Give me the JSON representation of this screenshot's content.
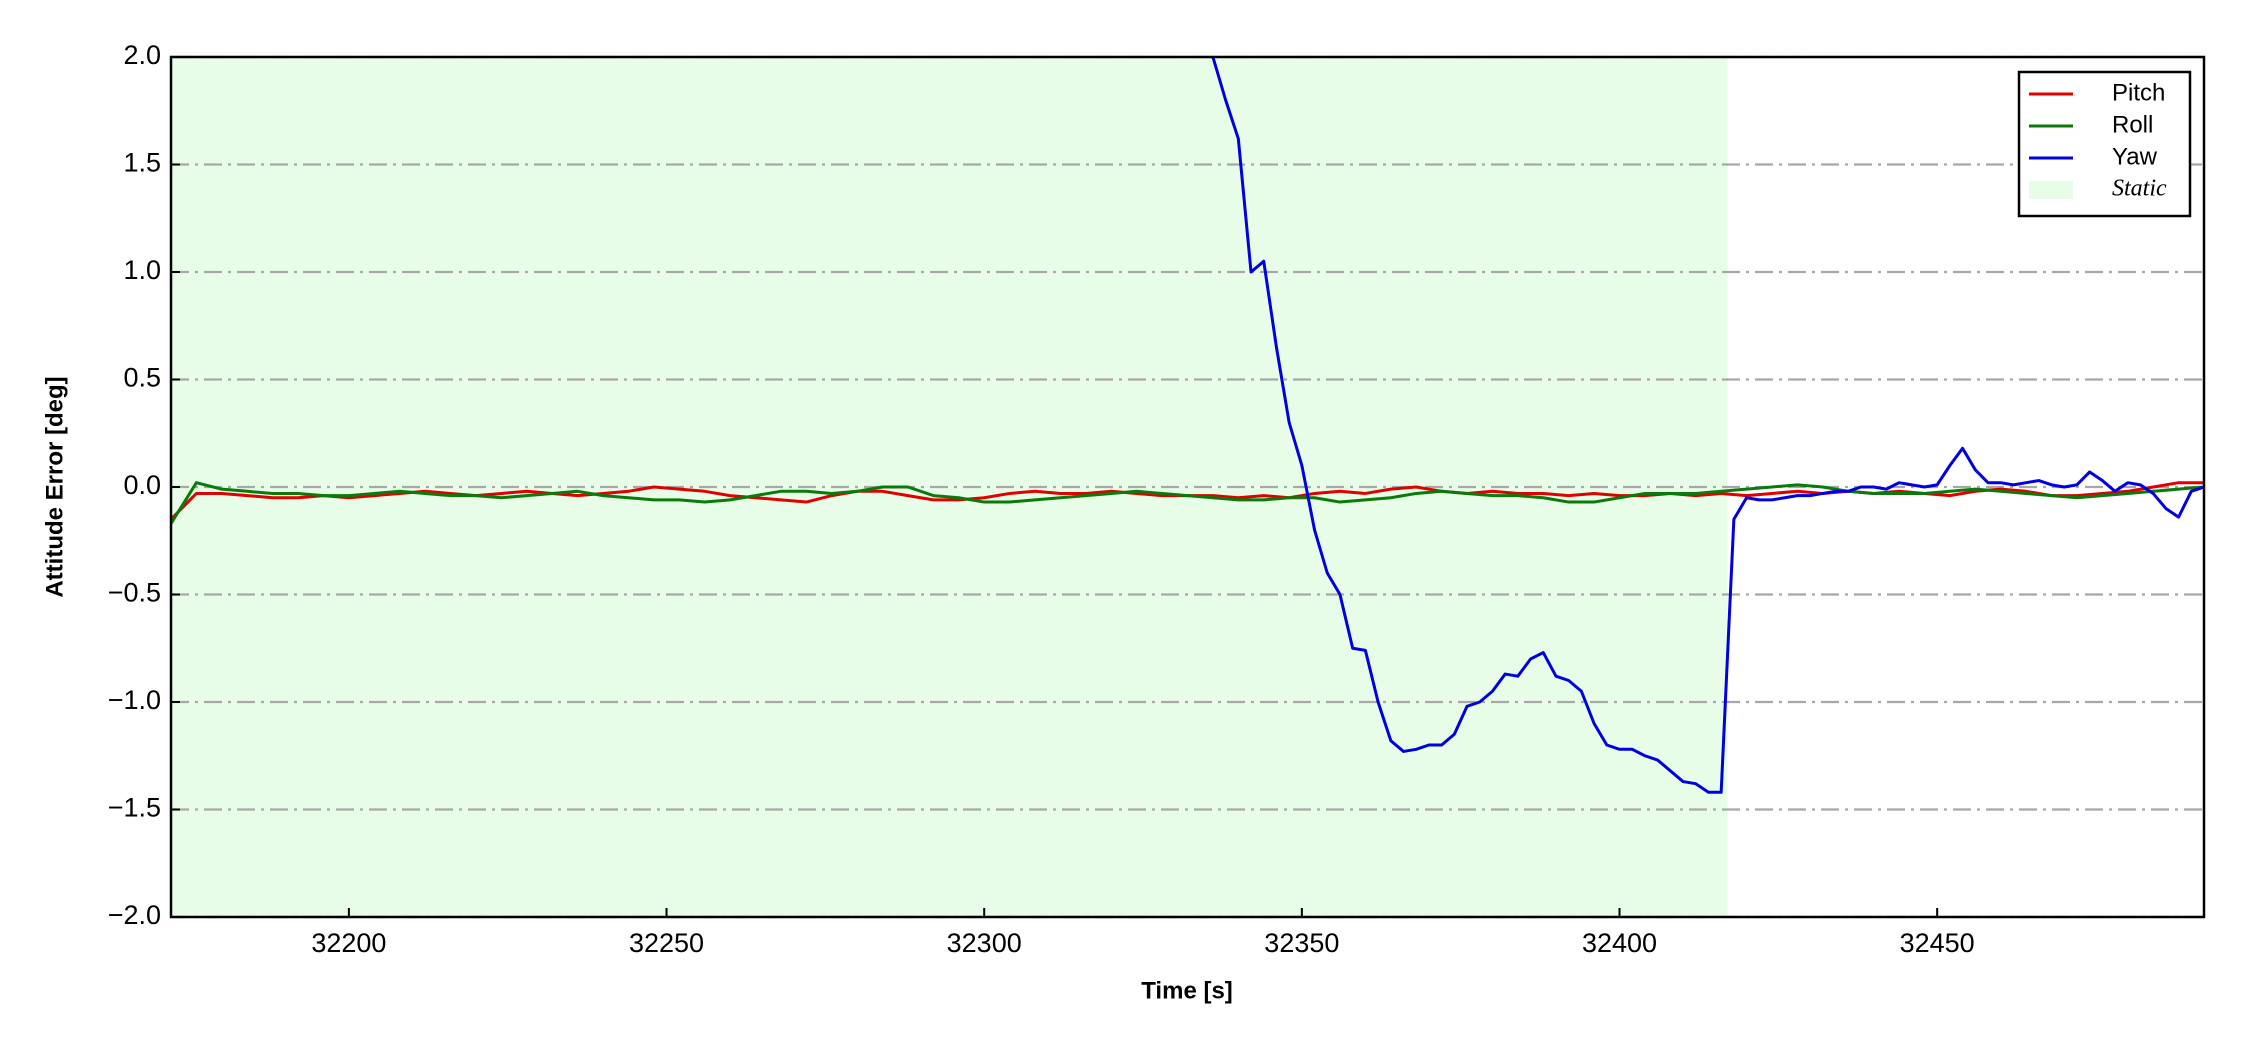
{
  "chart_data": {
    "type": "line",
    "xlabel": "Time [s]",
    "ylabel": "Attitude Error [deg]",
    "xlim": [
      32172,
      32492
    ],
    "ylim": [
      -2,
      2
    ],
    "xticks": [
      32200,
      32250,
      32300,
      32350,
      32400,
      32450
    ],
    "yticks": [
      {
        "value": -2,
        "label": "−2.0"
      },
      {
        "value": -1.5,
        "label": "−1.5"
      },
      {
        "value": -1,
        "label": "−1.0"
      },
      {
        "value": -0.5,
        "label": "−0.5"
      },
      {
        "value": 0,
        "label": "0.0"
      },
      {
        "value": 0.5,
        "label": "0.5"
      },
      {
        "value": 1,
        "label": "1.0"
      },
      {
        "value": 1.5,
        "label": "1.5"
      },
      {
        "value": 2,
        "label": "2.0"
      }
    ],
    "grid": true,
    "legend": "upper right",
    "static_region": {
      "name": "Static",
      "color": "#e8fde8",
      "xrange": [
        32172,
        32417
      ]
    },
    "series": [
      {
        "name": "Pitch",
        "color": "#e00000",
        "x": [
          32172,
          32176,
          32180,
          32184,
          32188,
          32192,
          32196,
          32200,
          32204,
          32208,
          32212,
          32216,
          32220,
          32224,
          32228,
          32232,
          32236,
          32240,
          32244,
          32248,
          32252,
          32256,
          32260,
          32264,
          32268,
          32272,
          32276,
          32280,
          32284,
          32288,
          32292,
          32296,
          32300,
          32304,
          32308,
          32312,
          32316,
          32320,
          32324,
          32328,
          32332,
          32336,
          32340,
          32344,
          32348,
          32352,
          32356,
          32360,
          32364,
          32368,
          32372,
          32376,
          32380,
          32384,
          32388,
          32392,
          32396,
          32400,
          32404,
          32408,
          32412,
          32416,
          32420,
          32424,
          32428,
          32432,
          32436,
          32440,
          32444,
          32448,
          32452,
          32456,
          32460,
          32464,
          32468,
          32472,
          32476,
          32480,
          32484,
          32488,
          32492
        ],
        "values": [
          -0.15,
          -0.03,
          -0.03,
          -0.04,
          -0.05,
          -0.05,
          -0.04,
          -0.05,
          -0.04,
          -0.03,
          -0.02,
          -0.03,
          -0.04,
          -0.03,
          -0.02,
          -0.03,
          -0.04,
          -0.03,
          -0.02,
          0.0,
          -0.01,
          -0.02,
          -0.04,
          -0.05,
          -0.06,
          -0.07,
          -0.04,
          -0.02,
          -0.02,
          -0.04,
          -0.06,
          -0.06,
          -0.05,
          -0.03,
          -0.02,
          -0.03,
          -0.03,
          -0.02,
          -0.03,
          -0.04,
          -0.04,
          -0.04,
          -0.05,
          -0.04,
          -0.05,
          -0.03,
          -0.02,
          -0.03,
          -0.01,
          0.0,
          -0.02,
          -0.03,
          -0.02,
          -0.03,
          -0.03,
          -0.04,
          -0.03,
          -0.04,
          -0.04,
          -0.03,
          -0.04,
          -0.03,
          -0.04,
          -0.03,
          -0.02,
          -0.03,
          -0.02,
          -0.03,
          -0.02,
          -0.03,
          -0.04,
          -0.02,
          -0.01,
          -0.02,
          -0.04,
          -0.04,
          -0.03,
          -0.02,
          0.0,
          0.02,
          0.02
        ]
      },
      {
        "name": "Roll",
        "color": "#0a7a0a",
        "x": [
          32172,
          32176,
          32180,
          32184,
          32188,
          32192,
          32196,
          32200,
          32204,
          32208,
          32212,
          32216,
          32220,
          32224,
          32228,
          32232,
          32236,
          32240,
          32244,
          32248,
          32252,
          32256,
          32260,
          32264,
          32268,
          32272,
          32276,
          32280,
          32284,
          32288,
          32292,
          32296,
          32300,
          32304,
          32308,
          32312,
          32316,
          32320,
          32324,
          32328,
          32332,
          32336,
          32340,
          32344,
          32348,
          32352,
          32356,
          32360,
          32364,
          32368,
          32372,
          32376,
          32380,
          32384,
          32388,
          32392,
          32396,
          32400,
          32404,
          32408,
          32412,
          32416,
          32420,
          32424,
          32428,
          32432,
          32436,
          32440,
          32444,
          32448,
          32452,
          32456,
          32460,
          32464,
          32468,
          32472,
          32476,
          32480,
          32484,
          32488,
          32492
        ],
        "values": [
          -0.17,
          0.02,
          -0.01,
          -0.02,
          -0.03,
          -0.03,
          -0.04,
          -0.04,
          -0.03,
          -0.02,
          -0.03,
          -0.04,
          -0.04,
          -0.05,
          -0.04,
          -0.03,
          -0.02,
          -0.04,
          -0.05,
          -0.06,
          -0.06,
          -0.07,
          -0.06,
          -0.04,
          -0.02,
          -0.02,
          -0.03,
          -0.02,
          0.0,
          0.0,
          -0.04,
          -0.05,
          -0.07,
          -0.07,
          -0.06,
          -0.05,
          -0.04,
          -0.03,
          -0.02,
          -0.03,
          -0.04,
          -0.05,
          -0.06,
          -0.06,
          -0.05,
          -0.05,
          -0.07,
          -0.06,
          -0.05,
          -0.03,
          -0.02,
          -0.03,
          -0.04,
          -0.04,
          -0.05,
          -0.07,
          -0.07,
          -0.05,
          -0.03,
          -0.03,
          -0.03,
          -0.02,
          -0.01,
          0.0,
          0.01,
          0.0,
          -0.02,
          -0.03,
          -0.03,
          -0.03,
          -0.02,
          -0.01,
          -0.02,
          -0.03,
          -0.04,
          -0.05,
          -0.04,
          -0.03,
          -0.02,
          -0.01,
          0.0
        ]
      },
      {
        "name": "Yaw",
        "color": "#0000e0",
        "x": [
          32336,
          32338,
          32340,
          32342,
          32344,
          32346,
          32348,
          32350,
          32352,
          32354,
          32356,
          32358,
          32360,
          32362,
          32364,
          32366,
          32368,
          32370,
          32372,
          32374,
          32376,
          32378,
          32380,
          32382,
          32384,
          32386,
          32388,
          32390,
          32392,
          32394,
          32396,
          32398,
          32400,
          32402,
          32404,
          32406,
          32408,
          32410,
          32412,
          32414,
          32416,
          32418,
          32420,
          32422,
          32424,
          32426,
          32428,
          32430,
          32432,
          32434,
          32436,
          32438,
          32440,
          32442,
          32444,
          32446,
          32448,
          32450,
          32452,
          32454,
          32456,
          32458,
          32460,
          32462,
          32464,
          32466,
          32468,
          32470,
          32472,
          32474,
          32476,
          32478,
          32480,
          32482,
          32484,
          32486,
          32488,
          32490,
          32492
        ],
        "values": [
          2.0,
          1.8,
          1.62,
          1.0,
          1.05,
          0.65,
          0.3,
          0.1,
          -0.2,
          -0.4,
          -0.5,
          -0.75,
          -0.76,
          -1.0,
          -1.18,
          -1.23,
          -1.22,
          -1.2,
          -1.2,
          -1.15,
          -1.02,
          -1.0,
          -0.95,
          -0.87,
          -0.88,
          -0.8,
          -0.77,
          -0.88,
          -0.9,
          -0.95,
          -1.1,
          -1.2,
          -1.22,
          -1.22,
          -1.25,
          -1.27,
          -1.32,
          -1.37,
          -1.38,
          -1.42,
          -1.42,
          -0.15,
          -0.05,
          -0.06,
          -0.06,
          -0.05,
          -0.04,
          -0.04,
          -0.03,
          -0.02,
          -0.02,
          0.0,
          0.0,
          -0.01,
          0.02,
          0.01,
          0.0,
          0.01,
          0.1,
          0.18,
          0.08,
          0.02,
          0.02,
          0.01,
          0.02,
          0.03,
          0.01,
          0.0,
          0.01,
          0.07,
          0.03,
          -0.02,
          0.02,
          0.01,
          -0.03,
          -0.1,
          -0.14,
          -0.02,
          0.0
        ]
      }
    ]
  }
}
